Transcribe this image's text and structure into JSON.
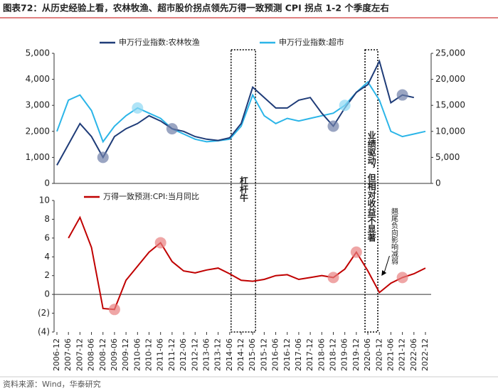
{
  "chart_data": [
    {
      "type": "line",
      "title": "图表72：从历史经验上看，农林牧渔、超市股价拐点领先万得一致预测 CPI 拐点 1-2 个季度左右",
      "source": "资料来源：Wind，华泰研究",
      "series": [
        {
          "name": "申万行业指数:农林牧渔",
          "color": "#1f3c78",
          "values": [
            700,
            1500,
            2300,
            1800,
            1000,
            1800,
            2100,
            2300,
            2600,
            2400,
            2100,
            2000,
            1800,
            1700,
            1650,
            1750,
            2300,
            3700,
            3300,
            2900,
            2900,
            3200,
            3300,
            2700,
            2200,
            2900,
            3500,
            3800,
            4700,
            3100,
            3400,
            3300,
            null
          ]
        },
        {
          "name": "申万行业指数:超市",
          "color": "#2bb5e8",
          "axis": "y2",
          "values": [
            10000,
            16000,
            17000,
            14000,
            8000,
            11000,
            13000,
            14500,
            13500,
            12500,
            10500,
            9500,
            8500,
            8000,
            8200,
            8500,
            11000,
            17000,
            13000,
            11500,
            12500,
            12000,
            12500,
            13000,
            13500,
            15000,
            17500,
            19500,
            16000,
            10000,
            9000,
            9500,
            10000
          ]
        }
      ],
      "ylim": [
        0,
        5000
      ],
      "yticks": [
        0,
        {
          "value": 1000,
          "label": "1,000"
        },
        {
          "value": 2000,
          "label": "2,000"
        },
        {
          "value": 3000,
          "label": "3,000"
        },
        {
          "value": 4000,
          "label": "4,000"
        },
        {
          "value": 5000,
          "label": "5,000"
        }
      ],
      "y2lim": [
        0,
        25000
      ],
      "y2ticks": [
        0,
        {
          "value": 5000,
          "label": "5,000"
        },
        {
          "value": 10000,
          "label": "10,000"
        },
        {
          "value": 15000,
          "label": "15,000"
        },
        {
          "value": 20000,
          "label": "20,000"
        },
        {
          "value": 25000,
          "label": "25,000"
        }
      ]
    },
    {
      "type": "line",
      "categories": [
        "2006-12",
        "2007-06",
        "2007-12",
        "2008-06",
        "2008-12",
        "2009-06",
        "2009-12",
        "2010-06",
        "2010-12",
        "2011-06",
        "2011-12",
        "2012-06",
        "2012-12",
        "2013-06",
        "2013-12",
        "2014-06",
        "2014-12",
        "2015-06",
        "2015-12",
        "2016-06",
        "2016-12",
        "2017-06",
        "2017-12",
        "2018-06",
        "2018-12",
        "2019-06",
        "2019-12",
        "2020-06",
        "2020-12",
        "2021-06",
        "2021-12",
        "2022-06",
        "2022-12"
      ],
      "series": [
        {
          "name": "万得一致预测:CPI:当月同比",
          "color": "#c00000",
          "values": [
            null,
            6,
            8.2,
            5,
            -1.5,
            -1.6,
            1.5,
            3,
            4.5,
            5.5,
            3.5,
            2.5,
            2.3,
            2.6,
            2.8,
            2.2,
            1.5,
            1.4,
            1.6,
            2.0,
            2.1,
            1.6,
            1.8,
            2.0,
            1.8,
            2.7,
            4.5,
            2.5,
            0.2,
            1.2,
            1.8,
            2.2,
            2.8
          ]
        }
      ],
      "ylim": [
        -4,
        10
      ],
      "yticks": [
        {
          "value": -4,
          "label": "(4)"
        },
        {
          "value": -2,
          "label": "(2)"
        },
        0,
        2,
        4,
        6,
        8,
        10
      ],
      "annotations": [
        "杠杆牛",
        "业绩驱动，但相对收益不显著",
        "翘尾负向影响减弱"
      ]
    }
  ]
}
